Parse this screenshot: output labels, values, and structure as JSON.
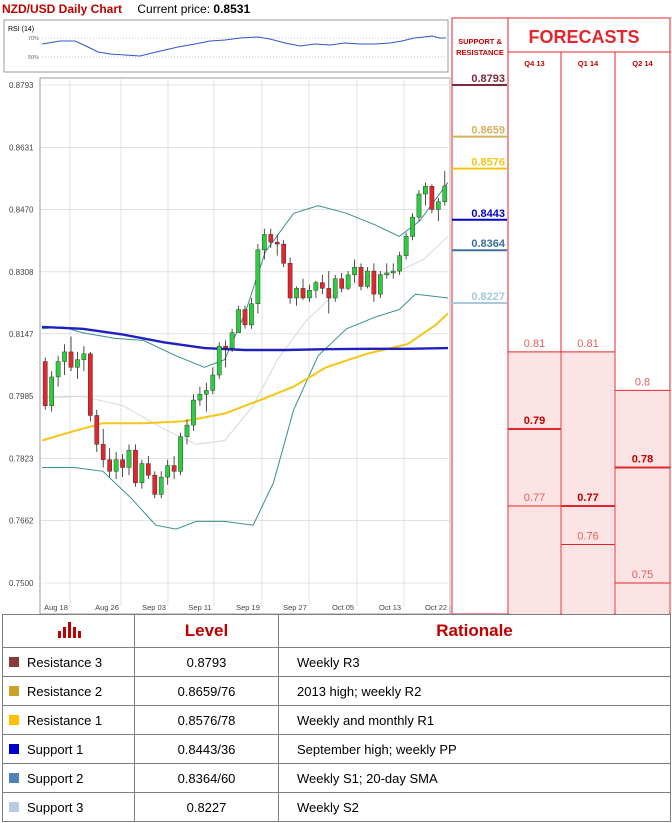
{
  "header": {
    "title": "NZD/USD Daily Chart",
    "price_label": "Current price:",
    "price_value": "0.8531"
  },
  "rsi_panel": {
    "label": "RSI (14)",
    "levels": [
      "70%",
      "50%"
    ]
  },
  "chart_data": {
    "type": "candlestick",
    "title": "NZD/USD Daily Chart",
    "y_ticks": [
      "0.8793",
      "0.8631",
      "0.8470",
      "0.8308",
      "0.8147",
      "0.7985",
      "0.7823",
      "0.7662",
      "0.7500"
    ],
    "ylim": [
      0.75,
      0.8793
    ],
    "x_ticks": [
      "Aug 18",
      "Aug 26",
      "Sep 03",
      "Sep 11",
      "Sep 19",
      "Sep 27",
      "Oct 05",
      "Oct 13",
      "Oct 22"
    ],
    "grid": true,
    "candles": [
      [
        0.8075,
        0.8085,
        0.795,
        0.796
      ],
      [
        0.796,
        0.805,
        0.7945,
        0.8035
      ],
      [
        0.8035,
        0.809,
        0.801,
        0.8075
      ],
      [
        0.8075,
        0.812,
        0.804,
        0.81
      ],
      [
        0.81,
        0.814,
        0.805,
        0.806
      ],
      [
        0.806,
        0.81,
        0.803,
        0.808
      ],
      [
        0.808,
        0.8115,
        0.805,
        0.8095
      ],
      [
        0.8095,
        0.81,
        0.792,
        0.7935
      ],
      [
        0.7935,
        0.795,
        0.784,
        0.786
      ],
      [
        0.786,
        0.79,
        0.78,
        0.782
      ],
      [
        0.782,
        0.785,
        0.7775,
        0.779
      ],
      [
        0.779,
        0.784,
        0.777,
        0.782
      ],
      [
        0.782,
        0.7835,
        0.7775,
        0.78
      ],
      [
        0.78,
        0.786,
        0.778,
        0.7845
      ],
      [
        0.7845,
        0.786,
        0.775,
        0.776
      ],
      [
        0.776,
        0.782,
        0.7745,
        0.781
      ],
      [
        0.781,
        0.783,
        0.777,
        0.778
      ],
      [
        0.778,
        0.779,
        0.772,
        0.773
      ],
      [
        0.773,
        0.779,
        0.772,
        0.7775
      ],
      [
        0.7775,
        0.782,
        0.7755,
        0.7805
      ],
      [
        0.7805,
        0.783,
        0.777,
        0.779
      ],
      [
        0.779,
        0.789,
        0.778,
        0.788
      ],
      [
        0.788,
        0.7925,
        0.786,
        0.791
      ],
      [
        0.791,
        0.799,
        0.7895,
        0.7975
      ],
      [
        0.7975,
        0.801,
        0.796,
        0.799
      ],
      [
        0.799,
        0.802,
        0.7945,
        0.8
      ],
      [
        0.8,
        0.806,
        0.799,
        0.804
      ],
      [
        0.804,
        0.8125,
        0.803,
        0.8115
      ],
      [
        0.8115,
        0.813,
        0.806,
        0.811
      ],
      [
        0.811,
        0.816,
        0.81,
        0.815
      ],
      [
        0.815,
        0.822,
        0.815,
        0.821
      ],
      [
        0.821,
        0.822,
        0.816,
        0.817
      ],
      [
        0.817,
        0.824,
        0.816,
        0.8225
      ],
      [
        0.8225,
        0.838,
        0.82,
        0.8365
      ],
      [
        0.8365,
        0.842,
        0.834,
        0.8405
      ],
      [
        0.8405,
        0.842,
        0.837,
        0.8385
      ],
      [
        0.8385,
        0.8405,
        0.835,
        0.838
      ],
      [
        0.838,
        0.839,
        0.832,
        0.833
      ],
      [
        0.833,
        0.8345,
        0.8225,
        0.824
      ],
      [
        0.824,
        0.827,
        0.822,
        0.8265
      ],
      [
        0.8265,
        0.829,
        0.8235,
        0.824
      ],
      [
        0.824,
        0.8275,
        0.823,
        0.826
      ],
      [
        0.826,
        0.8285,
        0.824,
        0.828
      ],
      [
        0.828,
        0.83,
        0.825,
        0.8265
      ],
      [
        0.8265,
        0.831,
        0.82,
        0.824
      ],
      [
        0.824,
        0.83,
        0.823,
        0.829
      ],
      [
        0.829,
        0.8305,
        0.8255,
        0.8265
      ],
      [
        0.8265,
        0.831,
        0.826,
        0.83
      ],
      [
        0.83,
        0.834,
        0.828,
        0.832
      ],
      [
        0.832,
        0.833,
        0.826,
        0.827
      ],
      [
        0.827,
        0.832,
        0.8265,
        0.831
      ],
      [
        0.831,
        0.833,
        0.823,
        0.825
      ],
      [
        0.825,
        0.831,
        0.824,
        0.83
      ],
      [
        0.83,
        0.833,
        0.829,
        0.8305
      ],
      [
        0.8305,
        0.833,
        0.829,
        0.831
      ],
      [
        0.831,
        0.836,
        0.83,
        0.835
      ],
      [
        0.835,
        0.841,
        0.834,
        0.84
      ],
      [
        0.84,
        0.846,
        0.839,
        0.845
      ],
      [
        0.845,
        0.852,
        0.844,
        0.851
      ],
      [
        0.851,
        0.854,
        0.848,
        0.853
      ],
      [
        0.853,
        0.8535,
        0.846,
        0.847
      ],
      [
        0.847,
        0.85,
        0.844,
        0.849
      ],
      [
        0.849,
        0.857,
        0.848,
        0.8531
      ]
    ],
    "overlays": {
      "sma_slow_blue": [
        [
          0,
          0.8165
        ],
        [
          0.1,
          0.816
        ],
        [
          0.2,
          0.8145
        ],
        [
          0.3,
          0.8125
        ],
        [
          0.4,
          0.811
        ],
        [
          0.5,
          0.8105
        ],
        [
          0.6,
          0.8105
        ],
        [
          0.7,
          0.8107
        ],
        [
          0.8,
          0.8108
        ],
        [
          0.9,
          0.8108
        ],
        [
          1,
          0.811
        ]
      ],
      "sma_mid_yellow": [
        [
          0,
          0.787
        ],
        [
          0.08,
          0.7895
        ],
        [
          0.15,
          0.7915
        ],
        [
          0.25,
          0.7915
        ],
        [
          0.35,
          0.792
        ],
        [
          0.45,
          0.794
        ],
        [
          0.55,
          0.798
        ],
        [
          0.62,
          0.801
        ],
        [
          0.7,
          0.806
        ],
        [
          0.8,
          0.8095
        ],
        [
          0.9,
          0.812
        ],
        [
          0.97,
          0.817
        ],
        [
          1,
          0.82
        ]
      ],
      "bollinger_upper": [
        [
          0,
          0.816
        ],
        [
          0.05,
          0.8165
        ],
        [
          0.1,
          0.815
        ],
        [
          0.18,
          0.8135
        ],
        [
          0.25,
          0.813
        ],
        [
          0.33,
          0.809
        ],
        [
          0.4,
          0.806
        ],
        [
          0.45,
          0.808
        ],
        [
          0.5,
          0.82
        ],
        [
          0.55,
          0.836
        ],
        [
          0.62,
          0.846
        ],
        [
          0.68,
          0.848
        ],
        [
          0.75,
          0.846
        ],
        [
          0.82,
          0.843
        ],
        [
          0.88,
          0.84
        ],
        [
          0.93,
          0.844
        ],
        [
          1,
          0.854
        ]
      ],
      "bollinger_lower": [
        [
          0,
          0.78
        ],
        [
          0.08,
          0.78
        ],
        [
          0.15,
          0.779
        ],
        [
          0.22,
          0.772
        ],
        [
          0.28,
          0.765
        ],
        [
          0.33,
          0.764
        ],
        [
          0.38,
          0.766
        ],
        [
          0.45,
          0.766
        ],
        [
          0.52,
          0.765
        ],
        [
          0.57,
          0.776
        ],
        [
          0.62,
          0.795
        ],
        [
          0.68,
          0.809
        ],
        [
          0.75,
          0.816
        ],
        [
          0.82,
          0.819
        ],
        [
          0.88,
          0.821
        ],
        [
          0.92,
          0.825
        ],
        [
          1,
          0.824
        ]
      ],
      "bollinger_mid": [
        [
          0,
          0.798
        ],
        [
          0.1,
          0.7985
        ],
        [
          0.2,
          0.796
        ],
        [
          0.3,
          0.79
        ],
        [
          0.38,
          0.786
        ],
        [
          0.45,
          0.787
        ],
        [
          0.52,
          0.796
        ],
        [
          0.58,
          0.808
        ],
        [
          0.65,
          0.818
        ],
        [
          0.72,
          0.825
        ],
        [
          0.8,
          0.8295
        ],
        [
          0.88,
          0.831
        ],
        [
          0.94,
          0.834
        ],
        [
          1,
          0.84
        ]
      ]
    },
    "support_resistance": {
      "label": "SUPPORT & RESISTANCE",
      "levels": [
        {
          "value": "0.8793",
          "color": "#7b2a3b"
        },
        {
          "value": "0.8659",
          "color": "#d4b15a"
        },
        {
          "value": "0.8576",
          "color": "#f5c518"
        },
        {
          "value": "0.8443",
          "color": "#0000cc"
        },
        {
          "value": "0.8364",
          "color": "#3d6f9e"
        },
        {
          "value": "0.8227",
          "color": "#a8c8dc"
        }
      ]
    },
    "forecasts": {
      "title": "FORECASTS",
      "columns": [
        {
          "label": "Q4 13",
          "values": [
            "0.81",
            "0.79",
            "0.77"
          ]
        },
        {
          "label": "Q1 14",
          "values": [
            "0.81",
            "0.77",
            "0.76"
          ]
        },
        {
          "label": "Q2 14",
          "values": [
            "0.8",
            "0.78",
            "0.75"
          ]
        }
      ]
    }
  },
  "table": {
    "headers": {
      "level": "Level",
      "rationale": "Rationale"
    },
    "header_icon": "bar-chart-icon",
    "rows": [
      {
        "name": "Resistance 3",
        "level": "0.8793",
        "rationale": "Weekly R3",
        "color": "#8b3a3a"
      },
      {
        "name": "Resistance 2",
        "level": "0.8659/76",
        "rationale": "2013 high; weekly R2",
        "color": "#c9a227"
      },
      {
        "name": "Resistance 1",
        "level": "0.8576/78",
        "rationale": "Weekly and monthly R1",
        "color": "#ffc000"
      },
      {
        "name": "Support 1",
        "level": "0.8443/36",
        "rationale": "September high; weekly PP",
        "color": "#0000cc"
      },
      {
        "name": "Support 2",
        "level": "0.8364/60",
        "rationale": "Weekly S1; 20-day SMA",
        "color": "#4f81bd"
      },
      {
        "name": "Support 3",
        "level": "0.8227",
        "rationale": "Weekly S2",
        "color": "#b8cce4"
      }
    ]
  },
  "colors": {
    "accent_red": "#c00000",
    "candle_up": "#2ecc40",
    "candle_down": "#e3262d",
    "forecast_fill": "#fde4e4"
  }
}
